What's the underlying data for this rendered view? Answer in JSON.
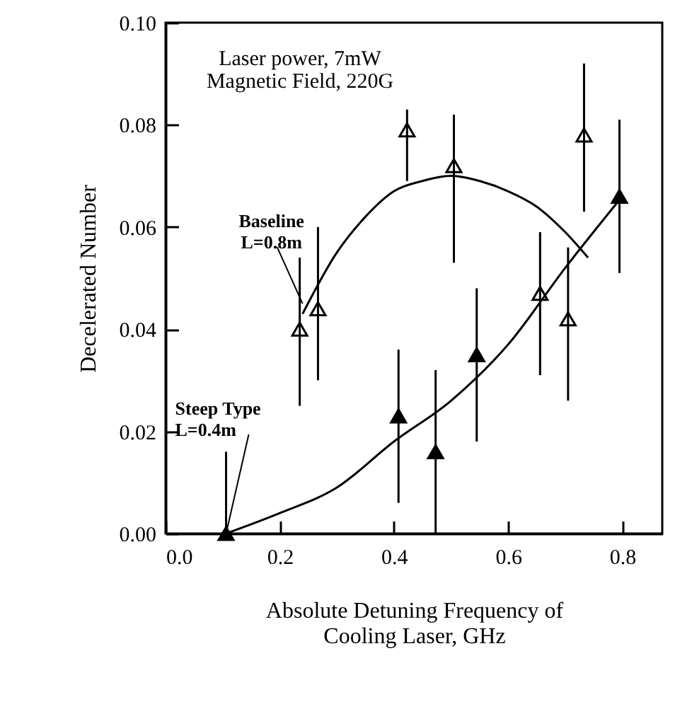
{
  "chart_data": {
    "type": "scatter",
    "xlabel": "Absolute Detuning Frequency of\nCooling Laser, GHz",
    "ylabel": "Decelerated Number",
    "xlim": [
      0,
      0.87
    ],
    "ylim": [
      0,
      0.1
    ],
    "xticks": [
      {
        "value": 0,
        "label": "0.0"
      },
      {
        "value": 0.2,
        "label": "0.2"
      },
      {
        "value": 0.4,
        "label": "0.4"
      },
      {
        "value": 0.6,
        "label": "0.6"
      },
      {
        "value": 0.8,
        "label": "0.8"
      }
    ],
    "yticks": [
      {
        "value": 0,
        "label": "0.00"
      },
      {
        "value": 0.02,
        "label": "0.02"
      },
      {
        "value": 0.04,
        "label": "0.04"
      },
      {
        "value": 0.06,
        "label": "0.06"
      },
      {
        "value": 0.08,
        "label": "0.08"
      },
      {
        "value": 0.1,
        "label": "0.10"
      }
    ],
    "grid": false,
    "marker": "triangle",
    "series": [
      {
        "color": "#000000",
        "x": [
          0.235,
          0.267,
          0.423,
          0.505,
          0.656,
          0.705,
          0.733
        ],
        "values": [
          0.04,
          0.044,
          0.079,
          0.072,
          0.047,
          0.042,
          0.078
        ],
        "errors": [
          [
            0.025,
            0.054
          ],
          [
            0.03,
            0.06
          ],
          [
            0.069,
            0.083
          ],
          [
            0.053,
            0.082
          ],
          [
            0.031,
            0.059
          ],
          [
            0.026,
            0.056
          ],
          [
            0.063,
            0.092
          ]
        ]
      },
      {
        "color": "#000000",
        "x": [
          0.106,
          0.408,
          0.473,
          0.545,
          0.795
        ],
        "values": [
          0.0,
          0.023,
          0.016,
          0.035,
          0.066
        ],
        "errors": [
          [
            0.0,
            0.016
          ],
          [
            0.006,
            0.036
          ],
          [
            0.0,
            0.032
          ],
          [
            0.018,
            0.048
          ],
          [
            0.051,
            0.081
          ]
        ]
      },
      {
        "type": "line",
        "marker": "none",
        "color": "#000000",
        "x": [
          0.24,
          0.3,
          0.35,
          0.4,
          0.45,
          0.5,
          0.55,
          0.6,
          0.65,
          0.7,
          0.74
        ],
        "values": [
          0.043,
          0.055,
          0.062,
          0.067,
          0.069,
          0.07,
          0.069,
          0.067,
          0.064,
          0.059,
          0.054
        ]
      },
      {
        "type": "line",
        "marker": "none",
        "color": "#000000",
        "x": [
          0.106,
          0.2,
          0.3,
          0.4,
          0.5,
          0.6,
          0.7,
          0.8
        ],
        "values": [
          0.0,
          0.004,
          0.009,
          0.018,
          0.026,
          0.037,
          0.052,
          0.066
        ]
      }
    ],
    "annotations": [
      "Laser power, 7mW\nMagnetic Field, 220G",
      {
        "text": "Baseline\nL=0.8m",
        "x": 0.24,
        "y": 0.045
      },
      {
        "text": "Steep Type\nL=0.4m",
        "x": 0.106,
        "y": 0.0
      }
    ]
  }
}
